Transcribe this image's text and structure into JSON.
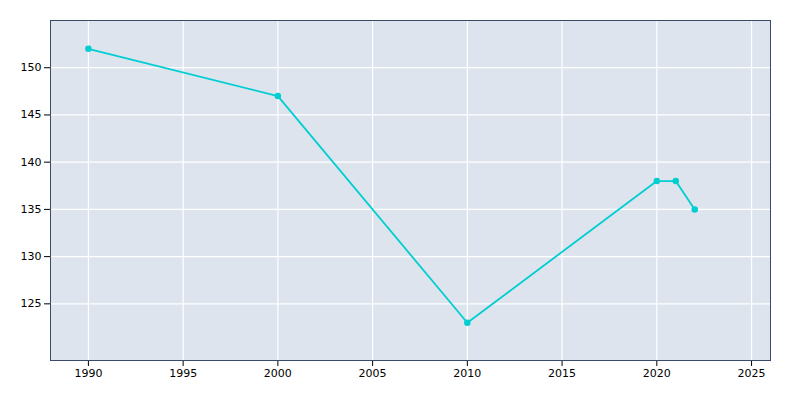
{
  "chart_data": {
    "type": "line",
    "x": [
      1990,
      2000,
      2010,
      2020,
      2021,
      2022
    ],
    "values": [
      152,
      147,
      123,
      138,
      138,
      135
    ],
    "color": "#00CED1",
    "marker": "circle",
    "xlim": [
      1988,
      2026
    ],
    "ylim": [
      119,
      155
    ],
    "xticks": [
      1990,
      1995,
      2000,
      2005,
      2010,
      2015,
      2020,
      2025
    ],
    "yticks": [
      125,
      130,
      135,
      140,
      145,
      150
    ],
    "grid": true
  }
}
